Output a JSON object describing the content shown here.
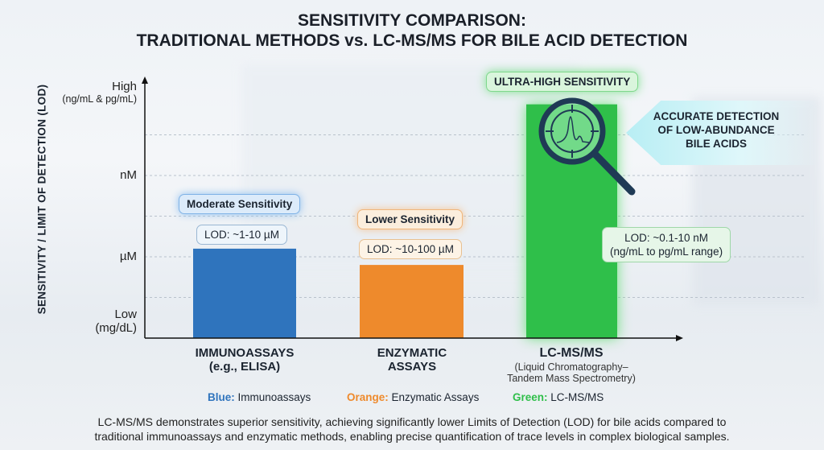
{
  "title": [
    "SENSITIVITY COMPARISON:",
    "TRADITIONAL METHODS vs. LC-MS/MS FOR BILE ACID DETECTION"
  ],
  "chart_data": {
    "type": "bar",
    "ylabel": "SENSITIVITY / LIMIT OF DETECTION (LOD)",
    "y_scale": "ordinal sensitivity levels (qualitative)",
    "yticks": [
      {
        "label": "Low",
        "sub": "(mg/dL)",
        "level": 0.5
      },
      {
        "label": "µM",
        "sub": "",
        "level": 2
      },
      {
        "label": "nM",
        "sub": "",
        "level": 4
      },
      {
        "label": "High",
        "sub": "(ng/mL & pg/mL)",
        "level": 6.2
      }
    ],
    "ylim": [
      0,
      6.3
    ],
    "grid": true,
    "categories": [
      {
        "name": "IMMUNOASSAYS",
        "sub": "(e.g., ELISA)",
        "value": 2.2,
        "color": "#2f74bd",
        "badge": "Moderate Sensitivity",
        "lod": "LOD: ~1-10 µM"
      },
      {
        "name": "ENZYMATIC",
        "sub": "ASSAYS",
        "value": 1.8,
        "color": "#ee8a2c",
        "badge": "Lower Sensitivity",
        "lod": "LOD: ~10-100 µM"
      },
      {
        "name": "LC-MS/MS",
        "sub": "(Liquid Chromatography–Tandem Mass Spectrometry)",
        "value": 5.75,
        "color": "#2fbf4a",
        "badge": "ULTRA-HIGH SENSITIVITY",
        "lod": "LOD: ~0.1-10 nM",
        "lod2": "(ng/mL to pg/mL range)"
      }
    ],
    "annotation": [
      "ACCURATE DETECTION",
      "OF LOW-ABUNDANCE",
      "BILE ACIDS"
    ],
    "legend": [
      {
        "key": "Blue:",
        "label": "Immunoassays",
        "color": "#2f74bd"
      },
      {
        "key": "Orange:",
        "label": "Enzymatic Assays",
        "color": "#ee8a2c"
      },
      {
        "key": "Green:",
        "label": "LC-MS/MS",
        "color": "#2fbf4a"
      }
    ]
  },
  "footnote": [
    "LC-MS/MS demonstrates superior sensitivity, achieving significantly lower Limits of Detection (LOD) for bile acids compared to",
    "traditional immunoassays and enzymatic methods, enabling precise quantification of trace levels in complex biological samples."
  ]
}
